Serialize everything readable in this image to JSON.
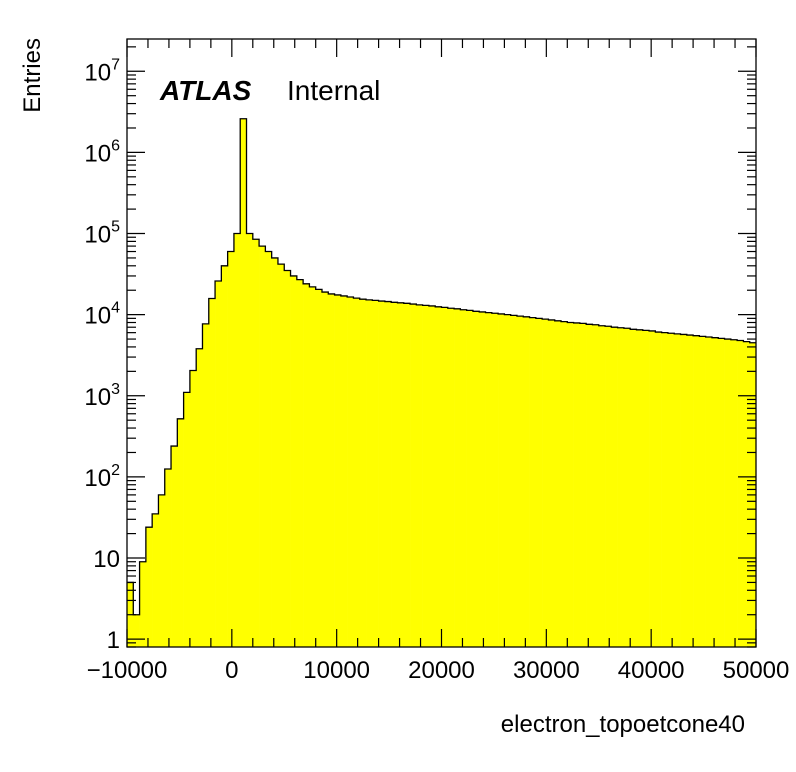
{
  "chart_data": {
    "type": "bar",
    "histogram": true,
    "title": "",
    "xlabel": "electron_topoetcone40",
    "ylabel": "Entries",
    "annotation": {
      "experiment": "ATLAS",
      "status": "Internal"
    },
    "xlim": [
      -10000,
      50000
    ],
    "ylim": [
      0.8,
      25000000
    ],
    "yscale": "log",
    "fill_color": "#ffff00",
    "line_color": "#000000",
    "bin_width": 600,
    "x_tick_labels": [
      {
        "value": -10000,
        "label": "−10000"
      },
      {
        "value": 0,
        "label": "0"
      },
      {
        "value": 10000,
        "label": "10000"
      },
      {
        "value": 20000,
        "label": "20000"
      },
      {
        "value": 30000,
        "label": "30000"
      },
      {
        "value": 40000,
        "label": "40000"
      },
      {
        "value": 50000,
        "label": "50000"
      }
    ],
    "y_tick_labels": [
      {
        "value": 1,
        "base": "1",
        "exp": ""
      },
      {
        "value": 10,
        "base": "10",
        "exp": ""
      },
      {
        "value": 100,
        "base": "10",
        "exp": "2"
      },
      {
        "value": 1000,
        "base": "10",
        "exp": "3"
      },
      {
        "value": 10000,
        "base": "10",
        "exp": "4"
      },
      {
        "value": 100000,
        "base": "10",
        "exp": "5"
      },
      {
        "value": 1000000,
        "base": "10",
        "exp": "6"
      },
      {
        "value": 10000000,
        "base": "10",
        "exp": "7"
      }
    ],
    "bin_lower_edges": [
      -10000,
      -9400,
      -8800,
      -8200,
      -7600,
      -7000,
      -6400,
      -5800,
      -5200,
      -4600,
      -4000,
      -3400,
      -2800,
      -2200,
      -1600,
      -1000,
      -400,
      200,
      800,
      1400,
      2000,
      2600,
      3200,
      3800,
      4400,
      5000,
      5600,
      6200,
      6800,
      7400,
      8000,
      8600,
      9200,
      9800,
      10400,
      11000,
      11600,
      12200,
      12800,
      13400,
      14000,
      14600,
      15200,
      15800,
      16400,
      17000,
      17600,
      18200,
      18800,
      19400,
      20000,
      20600,
      21200,
      21800,
      22400,
      23000,
      23600,
      24200,
      24800,
      25400,
      26000,
      26600,
      27200,
      27800,
      28400,
      29000,
      29600,
      30200,
      30800,
      31400,
      32000,
      32600,
      33200,
      33800,
      34400,
      35000,
      35600,
      36200,
      36800,
      37400,
      38000,
      38600,
      39200,
      39800,
      40400,
      41000,
      41600,
      42200,
      42800,
      43400,
      44000,
      44600,
      45200,
      45800,
      46400,
      47000,
      47600,
      48200,
      48800,
      49400
    ],
    "values": [
      5,
      2,
      9,
      24,
      35,
      60,
      125,
      240,
      520,
      1100,
      2050,
      3800,
      7700,
      15800,
      26000,
      40000,
      60000,
      100000,
      2600000,
      100000,
      85000,
      70000,
      60000,
      50000,
      42000,
      35000,
      30000,
      27000,
      24000,
      22000,
      20500,
      19000,
      18000,
      17500,
      17000,
      16500,
      16000,
      15500,
      15200,
      15000,
      14700,
      14500,
      14200,
      14000,
      13800,
      13500,
      13200,
      13000,
      12800,
      12500,
      12300,
      12000,
      11800,
      11500,
      11300,
      11000,
      10800,
      10600,
      10400,
      10200,
      10000,
      9800,
      9600,
      9400,
      9200,
      9000,
      8800,
      8600,
      8400,
      8200,
      8000,
      7900,
      7800,
      7600,
      7500,
      7300,
      7200,
      7000,
      6900,
      6800,
      6600,
      6500,
      6400,
      6300,
      6100,
      6000,
      5900,
      5800,
      5700,
      5600,
      5500,
      5400,
      5300,
      5200,
      5100,
      5000,
      4900,
      4800,
      4650,
      4500
    ]
  }
}
